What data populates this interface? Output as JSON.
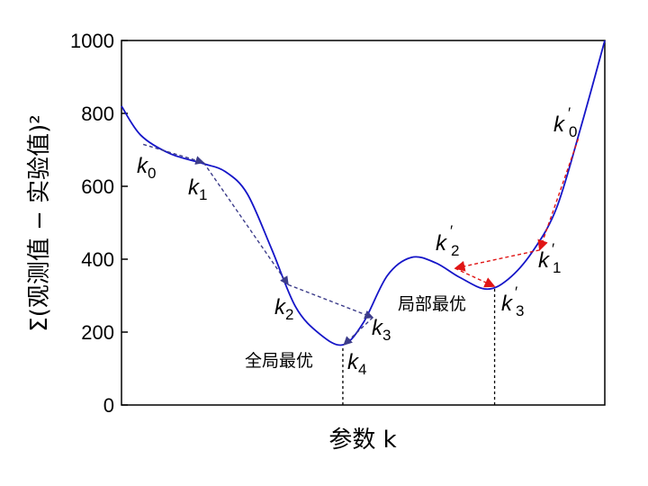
{
  "chart_data": {
    "type": "line",
    "xlabel": "参数 k",
    "ylabel": "Σ(观测值 − 实验值)²",
    "ylim": [
      0,
      1000
    ],
    "yticks": [
      "0",
      "200",
      "400",
      "600",
      "800",
      "1000"
    ],
    "grid": false,
    "series": [
      {
        "color": "#1515c8",
        "points": [
          [
            0.0,
            820
          ],
          [
            0.04,
            740
          ],
          [
            0.1,
            690
          ],
          [
            0.17,
            662
          ],
          [
            0.215,
            640
          ],
          [
            0.26,
            580
          ],
          [
            0.31,
            430
          ],
          [
            0.36,
            270
          ],
          [
            0.41,
            195
          ],
          [
            0.458,
            165
          ],
          [
            0.5,
            225
          ],
          [
            0.55,
            355
          ],
          [
            0.6,
            405
          ],
          [
            0.65,
            390
          ],
          [
            0.7,
            350
          ],
          [
            0.755,
            318
          ],
          [
            0.8,
            345
          ],
          [
            0.85,
            420
          ],
          [
            0.9,
            540
          ],
          [
            0.95,
            760
          ],
          [
            1.0,
            1000
          ]
        ]
      }
    ],
    "descent_path_global": {
      "color": "#3c3c8a",
      "steps": [
        {
          "from": [
            0.045,
            715
          ],
          "to": [
            0.17,
            665
          ]
        },
        {
          "from": [
            0.17,
            665
          ],
          "to": [
            0.345,
            330
          ]
        },
        {
          "from": [
            0.345,
            330
          ],
          "to": [
            0.52,
            240
          ]
        },
        {
          "from": [
            0.52,
            240
          ],
          "to": [
            0.46,
            165
          ]
        }
      ]
    },
    "descent_path_local": {
      "color": "#e01515",
      "steps": [
        {
          "from": [
            0.945,
            730
          ],
          "to": [
            0.865,
            425
          ]
        },
        {
          "from": [
            0.865,
            425
          ],
          "to": [
            0.69,
            375
          ]
        },
        {
          "from": [
            0.69,
            375
          ],
          "to": [
            0.772,
            325
          ]
        }
      ]
    },
    "vlines": [
      {
        "x": 0.458,
        "from": 0,
        "to": 165
      },
      {
        "x": 0.772,
        "from": 0,
        "to": 325
      }
    ],
    "point_labels": [
      {
        "base": "k",
        "sub": "0",
        "prime": false
      },
      {
        "base": "k",
        "sub": "1",
        "prime": false
      },
      {
        "base": "k",
        "sub": "2",
        "prime": false
      },
      {
        "base": "k",
        "sub": "3",
        "prime": false
      },
      {
        "base": "k",
        "sub": "4",
        "prime": false
      },
      {
        "base": "k",
        "sub": "0",
        "prime": true
      },
      {
        "base": "k",
        "sub": "1",
        "prime": true
      },
      {
        "base": "k",
        "sub": "2",
        "prime": true
      },
      {
        "base": "k",
        "sub": "3",
        "prime": true
      }
    ],
    "annotations": {
      "global_min": "全局最优",
      "local_min": "局部最优"
    }
  }
}
